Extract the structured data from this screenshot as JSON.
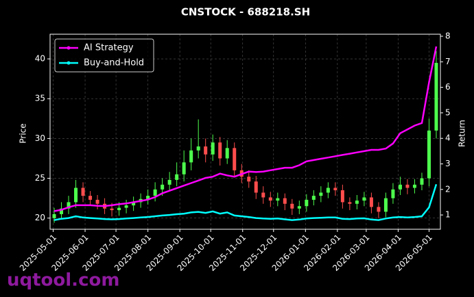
{
  "chart_data": {
    "type": "candlestick",
    "title": "CNSTOCK - 688218.SH",
    "ylabel": "Price",
    "y2label": "Return",
    "watermark": "uqtool.com",
    "xlim": [
      "2025-04-28",
      "2026-05-12"
    ],
    "xticks": [
      "2025-05-01",
      "2025-06-01",
      "2025-07-01",
      "2025-08-01",
      "2025-09-01",
      "2025-10-01",
      "2025-11-01",
      "2025-12-01",
      "2026-01-01",
      "2026-02-01",
      "2026-03-01",
      "2026-04-01",
      "2026-05-01"
    ],
    "ylim": [
      18.6,
      43.1
    ],
    "yticks": [
      20,
      25,
      30,
      35,
      40
    ],
    "y2lim": [
      0.44,
      8.08
    ],
    "y2ticks": [
      1,
      2,
      3,
      4,
      5,
      6,
      7,
      8
    ],
    "grid": true,
    "legend": "upper left",
    "up_color": "#4dff4d",
    "down_color": "#ff4d4d",
    "x": [
      "2025-05-02",
      "2025-05-09",
      "2025-05-16",
      "2025-05-23",
      "2025-05-30",
      "2025-06-06",
      "2025-06-13",
      "2025-06-20",
      "2025-06-27",
      "2025-07-04",
      "2025-07-11",
      "2025-07-18",
      "2025-07-25",
      "2025-08-01",
      "2025-08-08",
      "2025-08-15",
      "2025-08-22",
      "2025-08-29",
      "2025-09-05",
      "2025-09-12",
      "2025-09-19",
      "2025-09-26",
      "2025-10-03",
      "2025-10-10",
      "2025-10-17",
      "2025-10-24",
      "2025-10-31",
      "2025-11-07",
      "2025-11-14",
      "2025-11-21",
      "2025-11-28",
      "2025-12-05",
      "2025-12-12",
      "2025-12-19",
      "2025-12-26",
      "2026-01-02",
      "2026-01-09",
      "2026-01-16",
      "2026-01-23",
      "2026-01-30",
      "2026-02-06",
      "2026-02-13",
      "2026-02-20",
      "2026-02-27",
      "2026-03-06",
      "2026-03-13",
      "2026-03-20",
      "2026-03-27",
      "2026-04-03",
      "2026-04-10",
      "2026-04-17",
      "2026-04-24",
      "2026-05-01",
      "2026-05-08"
    ],
    "open": [
      20.0,
      20.5,
      21.2,
      22.0,
      23.8,
      22.8,
      22.3,
      21.8,
      21.2,
      21.0,
      21.3,
      21.6,
      22.0,
      22.4,
      22.8,
      23.6,
      24.2,
      24.8,
      25.5,
      27.0,
      28.5,
      29.0,
      28.0,
      29.5,
      27.5,
      28.8,
      26.0,
      25.2,
      24.6,
      23.2,
      22.6,
      22.2,
      22.5,
      21.8,
      21.2,
      21.5,
      22.3,
      22.8,
      23.2,
      23.8,
      23.5,
      22.0,
      21.8,
      22.2,
      22.6,
      21.4,
      20.8,
      22.5,
      23.6,
      24.2,
      23.8,
      24.2,
      25.0,
      31.0
    ],
    "high": [
      21.3,
      22.0,
      22.8,
      24.8,
      24.5,
      23.4,
      22.9,
      22.5,
      21.9,
      22.0,
      22.3,
      22.7,
      23.1,
      23.6,
      24.5,
      25.0,
      25.8,
      27.0,
      28.5,
      30.0,
      32.4,
      30.0,
      30.5,
      30.2,
      29.8,
      29.5,
      26.8,
      26.0,
      25.3,
      24.0,
      23.3,
      23.2,
      23.1,
      22.4,
      22.2,
      23.0,
      23.5,
      24.0,
      24.5,
      24.5,
      24.2,
      22.6,
      22.9,
      23.3,
      23.2,
      22.0,
      23.2,
      24.4,
      25.2,
      24.9,
      24.9,
      25.7,
      32.5,
      41.0
    ],
    "low": [
      19.4,
      19.9,
      20.5,
      21.3,
      22.0,
      21.6,
      21.1,
      20.5,
      20.2,
      20.3,
      20.6,
      20.9,
      21.3,
      21.7,
      22.1,
      22.8,
      23.4,
      24.0,
      24.6,
      26.0,
      27.5,
      27.0,
      27.2,
      26.6,
      26.8,
      25.2,
      24.4,
      23.8,
      22.4,
      21.8,
      21.4,
      21.5,
      21.0,
      20.4,
      20.5,
      20.8,
      21.6,
      22.0,
      22.5,
      22.8,
      21.2,
      21.0,
      21.1,
      21.5,
      20.6,
      20.0,
      20.1,
      21.8,
      22.9,
      23.0,
      23.1,
      23.5,
      24.0,
      30.0
    ],
    "close": [
      20.5,
      21.2,
      22.0,
      23.8,
      22.8,
      22.3,
      21.8,
      21.2,
      21.0,
      21.3,
      21.6,
      22.0,
      22.4,
      22.8,
      23.6,
      24.2,
      24.8,
      25.5,
      27.0,
      28.5,
      29.0,
      28.0,
      29.5,
      27.5,
      28.8,
      26.0,
      25.2,
      24.6,
      23.2,
      22.6,
      22.2,
      22.5,
      21.8,
      21.2,
      21.5,
      22.3,
      22.8,
      23.2,
      23.8,
      23.5,
      22.0,
      21.8,
      22.2,
      22.6,
      21.4,
      20.8,
      22.5,
      23.6,
      24.2,
      23.8,
      24.2,
      25.0,
      31.0,
      39.5
    ],
    "lines": [
      {
        "name": "AI Strategy",
        "color": "#ff00ff",
        "axis": "y2",
        "values": [
          1.15,
          1.2,
          1.3,
          1.38,
          1.38,
          1.38,
          1.36,
          1.35,
          1.38,
          1.42,
          1.45,
          1.5,
          1.55,
          1.6,
          1.7,
          1.85,
          1.95,
          2.05,
          2.15,
          2.25,
          2.35,
          2.45,
          2.5,
          2.62,
          2.55,
          2.5,
          2.6,
          2.7,
          2.68,
          2.7,
          2.75,
          2.8,
          2.85,
          2.85,
          2.95,
          3.1,
          3.15,
          3.2,
          3.25,
          3.3,
          3.35,
          3.4,
          3.45,
          3.5,
          3.55,
          3.55,
          3.6,
          3.8,
          4.2,
          4.35,
          4.5,
          4.6,
          6.2,
          7.6
        ]
      },
      {
        "name": "Buy-and-Hold",
        "color": "#00ffff",
        "axis": "y2",
        "values": [
          0.8,
          0.85,
          0.88,
          0.95,
          0.9,
          0.88,
          0.86,
          0.84,
          0.83,
          0.84,
          0.86,
          0.88,
          0.9,
          0.92,
          0.95,
          0.98,
          1.0,
          1.03,
          1.05,
          1.1,
          1.12,
          1.08,
          1.14,
          1.05,
          1.1,
          0.98,
          0.95,
          0.92,
          0.88,
          0.86,
          0.85,
          0.86,
          0.83,
          0.8,
          0.82,
          0.86,
          0.88,
          0.89,
          0.9,
          0.9,
          0.85,
          0.84,
          0.86,
          0.87,
          0.82,
          0.8,
          0.86,
          0.9,
          0.92,
          0.9,
          0.92,
          0.95,
          1.3,
          2.2
        ]
      }
    ]
  }
}
